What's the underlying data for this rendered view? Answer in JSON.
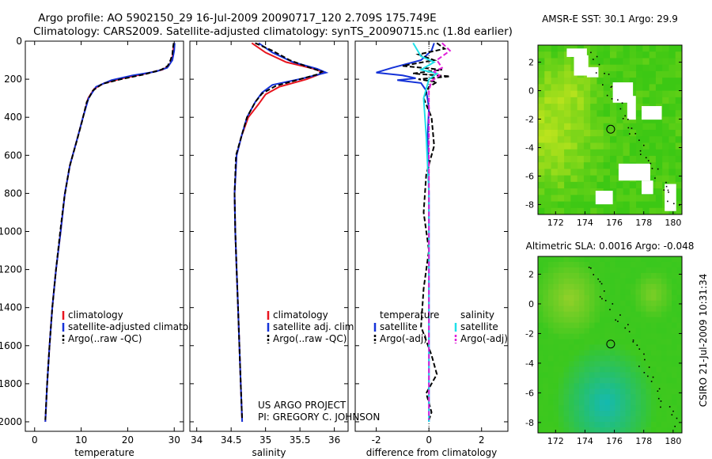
{
  "title_line1": "Argo profile: AO 5902150_29 16-Jul-2009 20090717_120 2.709S 175.749E",
  "title_line2": "Climatology: CARS2009. Satellite-adjusted climatology: synTS_20090715.nc (1.8d earlier)",
  "side_label": "CSIRO 21-Jul-2009 10:31:34",
  "credit_line1": "US ARGO PROJECT",
  "credit_line2": "PI: GREGORY C. JOHNSON",
  "colors": {
    "red": "#e8141e",
    "blue": "#1432d8",
    "black": "#000000",
    "cyan": "#20e0e8",
    "magenta": "#e020d8"
  },
  "chart_data": [
    {
      "id": "temperature",
      "type": "line",
      "xlabel": "temperature",
      "xlim": [
        -2,
        32
      ],
      "ylim": [
        2050,
        0
      ],
      "xticks": [
        0,
        10,
        20,
        30
      ],
      "yticks": [
        0,
        200,
        400,
        600,
        800,
        1000,
        1200,
        1400,
        1600,
        1800,
        2000
      ],
      "legend": [
        "climatology",
        "satellite-adjusted climatology",
        "Argo(..raw -QC)"
      ],
      "series": [
        {
          "name": "climatology",
          "color": "red",
          "dash": false,
          "points": [
            [
              29.9,
              10
            ],
            [
              29.8,
              50
            ],
            [
              29.5,
              100
            ],
            [
              28.8,
              130
            ],
            [
              27.5,
              150
            ],
            [
              24,
              170
            ],
            [
              19,
              195
            ],
            [
              15,
              220
            ],
            [
              12.8,
              250
            ],
            [
              11.5,
              300
            ],
            [
              10.4,
              400
            ],
            [
              9.3,
              500
            ],
            [
              7.6,
              650
            ],
            [
              6.5,
              800
            ],
            [
              5.6,
              1000
            ],
            [
              4.6,
              1200
            ],
            [
              3.8,
              1400
            ],
            [
              3.2,
              1600
            ],
            [
              2.7,
              1800
            ],
            [
              2.3,
              2000
            ]
          ]
        },
        {
          "name": "satellite-adjusted climatology",
          "color": "blue",
          "dash": false,
          "points": [
            [
              30.1,
              10
            ],
            [
              30.0,
              50
            ],
            [
              29.6,
              100
            ],
            [
              28.5,
              140
            ],
            [
              26,
              160
            ],
            [
              21,
              180
            ],
            [
              16.5,
              205
            ],
            [
              13.2,
              240
            ],
            [
              11.6,
              300
            ],
            [
              10.4,
              400
            ],
            [
              9.3,
              500
            ],
            [
              7.6,
              650
            ],
            [
              6.5,
              800
            ],
            [
              5.6,
              1000
            ],
            [
              4.6,
              1200
            ],
            [
              3.8,
              1400
            ],
            [
              3.2,
              1600
            ],
            [
              2.7,
              1800
            ],
            [
              2.3,
              2000
            ]
          ]
        },
        {
          "name": "Argo(..raw -QC)",
          "color": "black",
          "dash": true,
          "points": [
            [
              29.9,
              10
            ],
            [
              29.7,
              40
            ],
            [
              29.6,
              70
            ],
            [
              29.2,
              100
            ],
            [
              28.6,
              130
            ],
            [
              27.2,
              150
            ],
            [
              23.5,
              175
            ],
            [
              18.5,
              200
            ],
            [
              14.5,
              225
            ],
            [
              12.5,
              260
            ],
            [
              11.2,
              320
            ],
            [
              10.2,
              420
            ],
            [
              9.1,
              520
            ],
            [
              7.5,
              660
            ],
            [
              6.4,
              820
            ],
            [
              5.5,
              1000
            ],
            [
              4.6,
              1200
            ],
            [
              3.8,
              1400
            ],
            [
              3.2,
              1600
            ],
            [
              2.7,
              1800
            ],
            [
              2.3,
              1990
            ]
          ]
        }
      ]
    },
    {
      "id": "salinity",
      "type": "line",
      "xlabel": "salinity",
      "xlim": [
        33.9,
        36.2
      ],
      "ylim": [
        2050,
        0
      ],
      "xticks": [
        34,
        34.5,
        35,
        35.5,
        36
      ],
      "xticklabels": [
        "34",
        "34.5",
        "35",
        "35.5",
        "36"
      ],
      "legend": [
        "climatology",
        "satellite adj. clim.",
        "Argo(..raw -QC)"
      ],
      "series": [
        {
          "name": "climatology",
          "color": "red",
          "dash": false,
          "points": [
            [
              34.8,
              10
            ],
            [
              35.0,
              60
            ],
            [
              35.3,
              110
            ],
            [
              35.7,
              145
            ],
            [
              35.85,
              165
            ],
            [
              35.6,
              200
            ],
            [
              35.2,
              240
            ],
            [
              35.0,
              280
            ],
            [
              34.9,
              330
            ],
            [
              34.75,
              400
            ],
            [
              34.65,
              500
            ],
            [
              34.58,
              600
            ],
            [
              34.55,
              800
            ],
            [
              34.56,
              1000
            ],
            [
              34.58,
              1200
            ],
            [
              34.6,
              1400
            ],
            [
              34.62,
              1600
            ],
            [
              34.64,
              1800
            ],
            [
              34.66,
              2000
            ]
          ]
        },
        {
          "name": "satellite adj. clim.",
          "color": "blue",
          "dash": false,
          "points": [
            [
              34.9,
              10
            ],
            [
              35.1,
              60
            ],
            [
              35.4,
              110
            ],
            [
              35.75,
              145
            ],
            [
              35.88,
              165
            ],
            [
              35.55,
              195
            ],
            [
              35.1,
              230
            ],
            [
              34.95,
              270
            ],
            [
              34.85,
              320
            ],
            [
              34.73,
              400
            ],
            [
              34.65,
              500
            ],
            [
              34.58,
              600
            ],
            [
              34.55,
              800
            ],
            [
              34.56,
              1000
            ],
            [
              34.58,
              1200
            ],
            [
              34.6,
              1400
            ],
            [
              34.62,
              1600
            ],
            [
              34.64,
              1800
            ],
            [
              34.66,
              2000
            ]
          ]
        },
        {
          "name": "Argo(..raw -QC)",
          "color": "black",
          "dash": true,
          "points": [
            [
              34.85,
              10
            ],
            [
              35.1,
              50
            ],
            [
              35.35,
              100
            ],
            [
              35.65,
              140
            ],
            [
              35.82,
              160
            ],
            [
              35.75,
              175
            ],
            [
              35.45,
              205
            ],
            [
              35.15,
              235
            ],
            [
              34.95,
              275
            ],
            [
              34.85,
              320
            ],
            [
              34.73,
              400
            ],
            [
              34.65,
              500
            ],
            [
              34.57,
              600
            ],
            [
              34.55,
              800
            ],
            [
              34.56,
              1000
            ],
            [
              34.58,
              1200
            ],
            [
              34.6,
              1400
            ],
            [
              34.62,
              1600
            ],
            [
              34.64,
              1800
            ],
            [
              34.66,
              1990
            ]
          ]
        }
      ]
    },
    {
      "id": "difference",
      "type": "line",
      "xlabel": "difference from climatology",
      "xlim": [
        -2.8,
        3.0
      ],
      "ylim": [
        2050,
        0
      ],
      "xticks": [
        -2,
        0,
        2
      ],
      "legend_left_header": "temperature",
      "legend_right_header": "salinity",
      "legend_left": [
        "satellite",
        "Argo(-adj)"
      ],
      "legend_right": [
        "satellite",
        "Argo(-adj)"
      ],
      "series": [
        {
          "name": "temperature satellite",
          "color": "blue",
          "dash": false,
          "points": [
            [
              0.2,
              10
            ],
            [
              0.1,
              50
            ],
            [
              -0.3,
              100
            ],
            [
              -1.4,
              140
            ],
            [
              -2.0,
              165
            ],
            [
              -1.0,
              180
            ],
            [
              -0.5,
              195
            ],
            [
              -1.2,
              205
            ],
            [
              -0.3,
              220
            ],
            [
              -0.1,
              260
            ],
            [
              0.0,
              350
            ],
            [
              -0.05,
              500
            ],
            [
              0.0,
              800
            ],
            [
              0.0,
              1200
            ],
            [
              0.0,
              1600
            ],
            [
              0.0,
              2000
            ]
          ]
        },
        {
          "name": "temperature Argo(-adj)",
          "color": "black",
          "dash": true,
          "points": [
            [
              0.3,
              10
            ],
            [
              0.6,
              40
            ],
            [
              -0.4,
              70
            ],
            [
              0.2,
              100
            ],
            [
              -1.0,
              130
            ],
            [
              0.5,
              150
            ],
            [
              -0.6,
              170
            ],
            [
              0.8,
              185
            ],
            [
              -0.4,
              200
            ],
            [
              0.3,
              215
            ],
            [
              0.0,
              240
            ],
            [
              -0.2,
              300
            ],
            [
              0.1,
              400
            ],
            [
              0.2,
              550
            ],
            [
              -0.1,
              700
            ],
            [
              -0.2,
              900
            ],
            [
              0.0,
              1100
            ],
            [
              -0.2,
              1300
            ],
            [
              -0.3,
              1500
            ],
            [
              0.1,
              1650
            ],
            [
              0.3,
              1750
            ],
            [
              -0.1,
              1850
            ],
            [
              0.1,
              1950
            ],
            [
              0.0,
              1990
            ]
          ]
        },
        {
          "name": "salinity satellite",
          "color": "cyan",
          "dash": false,
          "points": [
            [
              -0.6,
              10
            ],
            [
              -0.3,
              80
            ],
            [
              0.2,
              110
            ],
            [
              -0.3,
              150
            ],
            [
              0.3,
              170
            ],
            [
              0.0,
              200
            ],
            [
              -0.2,
              300
            ],
            [
              -0.1,
              500
            ],
            [
              0.0,
              800
            ],
            [
              0.0,
              1200
            ],
            [
              0.0,
              1600
            ],
            [
              0.0,
              2000
            ]
          ]
        },
        {
          "name": "salinity Argo(-adj)",
          "color": "magenta",
          "dash": true,
          "points": [
            [
              0.5,
              10
            ],
            [
              0.8,
              50
            ],
            [
              0.3,
              100
            ],
            [
              0.5,
              140
            ],
            [
              0.2,
              160
            ],
            [
              0.4,
              180
            ],
            [
              0.1,
              210
            ],
            [
              0.0,
              260
            ],
            [
              0.0,
              400
            ],
            [
              0.0,
              800
            ],
            [
              0.0,
              1200
            ],
            [
              0.0,
              1600
            ],
            [
              0.0,
              1990
            ]
          ]
        }
      ]
    },
    {
      "id": "sst_map",
      "type": "heatmap",
      "title": "AMSR-E SST: 30.1 Argo: 29.9",
      "xlim": [
        170.8,
        180.6
      ],
      "ylim": [
        -8.7,
        3.2
      ],
      "xticks": [
        172,
        174,
        176,
        178,
        180
      ],
      "yticks": [
        2,
        0,
        -2,
        -4,
        -6,
        -8
      ],
      "marker": [
        175.749,
        -2.709
      ]
    },
    {
      "id": "sla_map",
      "type": "heatmap",
      "title": "Altimetric SLA: 0.0016 Argo: -0.048",
      "xlim": [
        170.8,
        180.6
      ],
      "ylim": [
        -8.7,
        3.2
      ],
      "xticks": [
        172,
        174,
        176,
        178,
        180
      ],
      "yticks": [
        2,
        0,
        -2,
        -4,
        -6,
        -8
      ],
      "marker": [
        175.749,
        -2.709
      ]
    }
  ]
}
